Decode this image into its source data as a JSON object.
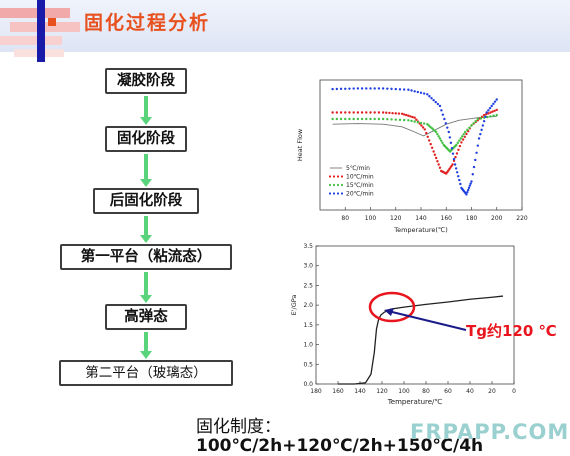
{
  "slide": {
    "title": "固化过程分析",
    "watermark": "FRPAPP.COM"
  },
  "flow": {
    "steps": [
      "凝胶阶段",
      "固化阶段",
      "后固化阶段",
      "第一平台（粘流态）",
      "高弹态",
      "第二平台（玻璃态）"
    ]
  },
  "colors": {
    "title": "#e8501e",
    "arrow": "#5ad47a",
    "annotation": "#e8151e"
  },
  "annotation": {
    "tg_label": "Tg约120 ℃"
  },
  "curing_system": {
    "label": "固化制度：",
    "value": "100℃/2h+120℃/2h+150℃/4h"
  },
  "chart_data": [
    {
      "type": "line",
      "title": "",
      "xlabel": "Temperature(℃)",
      "ylabel": "Heat Flow",
      "xlim": [
        60,
        220
      ],
      "x_ticks": [
        "80",
        "100",
        "120",
        "140",
        "160",
        "180",
        "200",
        "220"
      ],
      "legend_position": "bottom-left",
      "series": [
        {
          "name": "5℃/min",
          "color": "#777777",
          "marker": "line",
          "x": [
            70,
            90,
            110,
            125,
            135,
            142,
            150,
            160,
            170,
            185,
            200
          ],
          "y": [
            0.66,
            0.665,
            0.66,
            0.64,
            0.6,
            0.57,
            0.61,
            0.66,
            0.69,
            0.71,
            0.72
          ]
        },
        {
          "name": "10℃/min",
          "color": "#e02020",
          "marker": "dot",
          "x": [
            70,
            90,
            110,
            125,
            135,
            143,
            150,
            156,
            160,
            165,
            172,
            180,
            190,
            200
          ],
          "y": [
            0.75,
            0.75,
            0.75,
            0.74,
            0.71,
            0.62,
            0.45,
            0.3,
            0.28,
            0.35,
            0.52,
            0.65,
            0.73,
            0.77
          ]
        },
        {
          "name": "15℃/min",
          "color": "#40c040",
          "marker": "dot",
          "x": [
            70,
            90,
            110,
            130,
            145,
            152,
            158,
            163,
            168,
            175,
            185,
            200
          ],
          "y": [
            0.7,
            0.7,
            0.7,
            0.69,
            0.66,
            0.6,
            0.5,
            0.45,
            0.5,
            0.6,
            0.7,
            0.73
          ]
        },
        {
          "name": "20℃/min",
          "color": "#2040e0",
          "marker": "dot",
          "x": [
            70,
            90,
            110,
            130,
            145,
            155,
            162,
            167,
            172,
            176,
            180,
            186,
            192,
            200
          ],
          "y": [
            0.93,
            0.935,
            0.935,
            0.925,
            0.89,
            0.8,
            0.6,
            0.35,
            0.17,
            0.12,
            0.22,
            0.55,
            0.75,
            0.85
          ]
        }
      ]
    },
    {
      "type": "line",
      "title": "",
      "xlabel": "Temperature/℃",
      "ylabel": "E'/GPa",
      "xlim": [
        180,
        0
      ],
      "ylim": [
        0,
        3.5
      ],
      "x_ticks": [
        "180",
        "160",
        "140",
        "120",
        "100",
        "80",
        "60",
        "40",
        "20",
        "0"
      ],
      "y_ticks": [
        "0.0",
        "0.5",
        "1.0",
        "1.5",
        "2.0",
        "2.5",
        "3.0",
        "3.5"
      ],
      "series": [
        {
          "name": "",
          "color": "#222222",
          "marker": "line",
          "x": [
            160,
            145,
            135,
            130,
            127,
            125,
            123,
            121,
            118,
            112,
            100,
            80,
            60,
            40,
            20,
            10
          ],
          "y": [
            0.0,
            0.0,
            0.03,
            0.25,
            0.8,
            1.4,
            1.65,
            1.75,
            1.82,
            1.9,
            1.95,
            2.02,
            2.08,
            2.15,
            2.2,
            2.23
          ]
        }
      ]
    }
  ]
}
